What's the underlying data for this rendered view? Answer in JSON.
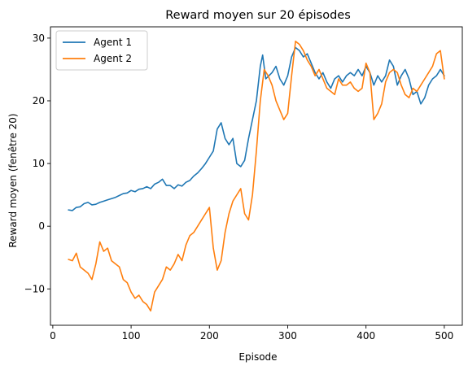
{
  "chart_data": {
    "type": "line",
    "title": "Reward moyen sur 20 épisodes",
    "xlabel": "Episode",
    "ylabel": "Reward moyen (fenêtre 20)",
    "xlim": [
      -3,
      523
    ],
    "ylim": [
      -15.8,
      31.8
    ],
    "xticks": [
      0,
      100,
      200,
      300,
      400,
      500
    ],
    "yticks": [
      -10,
      0,
      10,
      20,
      30
    ],
    "grid": false,
    "legend_position": "top-left",
    "series": [
      {
        "name": "Agent 1",
        "color": "#1f77b4",
        "points": [
          [
            20,
            2.6
          ],
          [
            25,
            2.5
          ],
          [
            30,
            3.0
          ],
          [
            35,
            3.1
          ],
          [
            40,
            3.6
          ],
          [
            45,
            3.8
          ],
          [
            50,
            3.4
          ],
          [
            55,
            3.5
          ],
          [
            60,
            3.8
          ],
          [
            65,
            4.0
          ],
          [
            70,
            4.2
          ],
          [
            75,
            4.4
          ],
          [
            80,
            4.6
          ],
          [
            85,
            4.9
          ],
          [
            90,
            5.2
          ],
          [
            95,
            5.3
          ],
          [
            100,
            5.7
          ],
          [
            105,
            5.5
          ],
          [
            110,
            5.9
          ],
          [
            115,
            6.0
          ],
          [
            120,
            6.3
          ],
          [
            125,
            6.0
          ],
          [
            130,
            6.7
          ],
          [
            135,
            7.0
          ],
          [
            140,
            7.5
          ],
          [
            145,
            6.5
          ],
          [
            150,
            6.5
          ],
          [
            155,
            6.0
          ],
          [
            160,
            6.6
          ],
          [
            165,
            6.4
          ],
          [
            170,
            7.0
          ],
          [
            175,
            7.3
          ],
          [
            180,
            8.0
          ],
          [
            185,
            8.5
          ],
          [
            190,
            9.2
          ],
          [
            195,
            10.0
          ],
          [
            200,
            11.0
          ],
          [
            205,
            12.0
          ],
          [
            210,
            15.5
          ],
          [
            215,
            16.5
          ],
          [
            220,
            14.0
          ],
          [
            225,
            13.0
          ],
          [
            230,
            14.0
          ],
          [
            235,
            10.0
          ],
          [
            240,
            9.5
          ],
          [
            245,
            10.5
          ],
          [
            250,
            14.0
          ],
          [
            255,
            17.0
          ],
          [
            260,
            20.0
          ],
          [
            265,
            25.5
          ],
          [
            268,
            27.3
          ],
          [
            272,
            23.5
          ],
          [
            280,
            24.5
          ],
          [
            285,
            25.5
          ],
          [
            290,
            23.5
          ],
          [
            295,
            22.5
          ],
          [
            300,
            24.0
          ],
          [
            305,
            27.0
          ],
          [
            310,
            28.5
          ],
          [
            315,
            28.0
          ],
          [
            320,
            27.0
          ],
          [
            325,
            27.5
          ],
          [
            330,
            26.0
          ],
          [
            335,
            24.5
          ],
          [
            340,
            23.5
          ],
          [
            345,
            24.5
          ],
          [
            350,
            23.0
          ],
          [
            355,
            22.0
          ],
          [
            360,
            23.5
          ],
          [
            365,
            24.0
          ],
          [
            370,
            23.0
          ],
          [
            375,
            24.0
          ],
          [
            380,
            24.5
          ],
          [
            385,
            24.0
          ],
          [
            390,
            25.0
          ],
          [
            395,
            24.0
          ],
          [
            400,
            25.5
          ],
          [
            405,
            24.5
          ],
          [
            410,
            22.5
          ],
          [
            415,
            24.0
          ],
          [
            420,
            23.0
          ],
          [
            425,
            24.0
          ],
          [
            430,
            26.5
          ],
          [
            435,
            25.5
          ],
          [
            440,
            22.5
          ],
          [
            445,
            24.0
          ],
          [
            450,
            25.0
          ],
          [
            455,
            23.5
          ],
          [
            460,
            21.0
          ],
          [
            465,
            21.5
          ],
          [
            470,
            19.5
          ],
          [
            475,
            20.5
          ],
          [
            480,
            22.5
          ],
          [
            485,
            23.5
          ],
          [
            490,
            24.0
          ],
          [
            495,
            25.0
          ],
          [
            500,
            24.0
          ]
        ]
      },
      {
        "name": "Agent 2",
        "color": "#ff7f0e",
        "points": [
          [
            20,
            -5.3
          ],
          [
            25,
            -5.5
          ],
          [
            30,
            -4.3
          ],
          [
            35,
            -6.5
          ],
          [
            40,
            -7.0
          ],
          [
            45,
            -7.5
          ],
          [
            50,
            -8.5
          ],
          [
            55,
            -6.0
          ],
          [
            60,
            -2.5
          ],
          [
            65,
            -4.0
          ],
          [
            70,
            -3.5
          ],
          [
            75,
            -5.5
          ],
          [
            80,
            -6.0
          ],
          [
            85,
            -6.5
          ],
          [
            90,
            -8.5
          ],
          [
            95,
            -9.0
          ],
          [
            100,
            -10.5
          ],
          [
            105,
            -11.5
          ],
          [
            110,
            -11.0
          ],
          [
            115,
            -12.0
          ],
          [
            120,
            -12.5
          ],
          [
            125,
            -13.5
          ],
          [
            130,
            -10.5
          ],
          [
            135,
            -9.5
          ],
          [
            140,
            -8.5
          ],
          [
            145,
            -6.5
          ],
          [
            150,
            -7.0
          ],
          [
            155,
            -6.0
          ],
          [
            160,
            -4.5
          ],
          [
            165,
            -5.5
          ],
          [
            170,
            -3.0
          ],
          [
            175,
            -1.5
          ],
          [
            180,
            -1.0
          ],
          [
            185,
            0.0
          ],
          [
            190,
            1.0
          ],
          [
            195,
            2.0
          ],
          [
            200,
            3.0
          ],
          [
            205,
            -3.5
          ],
          [
            210,
            -7.0
          ],
          [
            215,
            -5.5
          ],
          [
            220,
            -1.0
          ],
          [
            225,
            2.0
          ],
          [
            230,
            4.0
          ],
          [
            235,
            5.0
          ],
          [
            240,
            6.0
          ],
          [
            245,
            2.0
          ],
          [
            250,
            1.0
          ],
          [
            255,
            5.0
          ],
          [
            260,
            12.0
          ],
          [
            265,
            20.0
          ],
          [
            270,
            25.0
          ],
          [
            275,
            24.0
          ],
          [
            280,
            22.5
          ],
          [
            285,
            20.0
          ],
          [
            290,
            18.5
          ],
          [
            295,
            17.0
          ],
          [
            300,
            18.0
          ],
          [
            305,
            24.0
          ],
          [
            310,
            29.5
          ],
          [
            315,
            29.0
          ],
          [
            320,
            28.0
          ],
          [
            325,
            26.5
          ],
          [
            330,
            25.5
          ],
          [
            335,
            24.0
          ],
          [
            340,
            25.0
          ],
          [
            345,
            23.5
          ],
          [
            350,
            22.0
          ],
          [
            355,
            21.5
          ],
          [
            360,
            21.0
          ],
          [
            365,
            23.5
          ],
          [
            370,
            22.5
          ],
          [
            375,
            22.5
          ],
          [
            380,
            23.0
          ],
          [
            385,
            22.0
          ],
          [
            390,
            21.5
          ],
          [
            395,
            22.0
          ],
          [
            400,
            26.0
          ],
          [
            405,
            24.5
          ],
          [
            410,
            17.0
          ],
          [
            415,
            18.0
          ],
          [
            420,
            19.5
          ],
          [
            425,
            23.0
          ],
          [
            430,
            24.5
          ],
          [
            435,
            25.0
          ],
          [
            440,
            24.5
          ],
          [
            445,
            22.5
          ],
          [
            450,
            21.0
          ],
          [
            455,
            20.5
          ],
          [
            460,
            22.0
          ],
          [
            465,
            21.5
          ],
          [
            470,
            22.5
          ],
          [
            475,
            23.5
          ],
          [
            480,
            24.5
          ],
          [
            485,
            25.5
          ],
          [
            490,
            27.5
          ],
          [
            495,
            28.0
          ],
          [
            500,
            23.5
          ]
        ]
      }
    ]
  }
}
